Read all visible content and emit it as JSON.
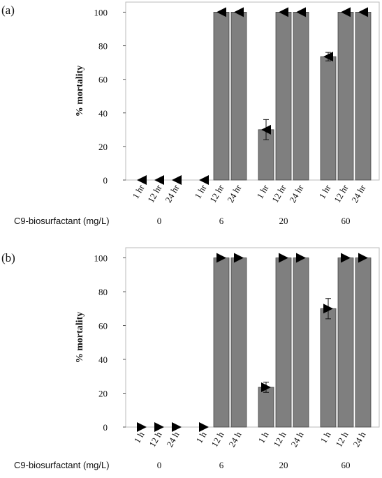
{
  "chart_data": [
    {
      "type": "bar",
      "panel_label": "(a)",
      "y_label": "% mortality",
      "x_title": "C9-biosurfactant (mg/L)",
      "groups": [
        "0",
        "6",
        "20",
        "60"
      ],
      "categories": [
        "1 hr",
        "12 hr",
        "24 hr",
        "1 hr",
        "12 hr",
        "24 hr",
        "1 hr",
        "12 hr",
        "24 hr",
        "1 hr",
        "12 hr",
        "24 hr"
      ],
      "values": [
        0,
        0,
        0,
        0,
        100,
        100,
        30,
        100,
        100,
        73.5,
        100,
        100
      ],
      "errors": [
        0,
        0,
        0,
        0,
        0,
        0,
        6,
        0,
        0,
        2.5,
        0,
        0
      ],
      "color": "#7f7f7f",
      "marker": "left",
      "ylim": [
        0,
        106
      ],
      "yticks": [
        0,
        20,
        40,
        60,
        80,
        100
      ]
    },
    {
      "type": "bar",
      "panel_label": "(b)",
      "y_label": "% mortality",
      "x_title": "C9-biosurfactant (mg/L)",
      "groups": [
        "0",
        "6",
        "20",
        "60"
      ],
      "categories": [
        "1 h",
        "12 h",
        "24 h",
        "1 h",
        "12 h",
        "24 h",
        "1 h",
        "12 h",
        "24 h",
        "1 h",
        "12 h",
        "24 h"
      ],
      "values": [
        0,
        0,
        0,
        0,
        100,
        100,
        23.5,
        100,
        100,
        70,
        100,
        100
      ],
      "errors": [
        0,
        0,
        0,
        0,
        0,
        0,
        3,
        0,
        0,
        6,
        0,
        0
      ],
      "color": "#7f7f7f",
      "marker": "right",
      "ylim": [
        0,
        106
      ],
      "yticks": [
        0,
        20,
        40,
        60,
        80,
        100
      ]
    }
  ]
}
